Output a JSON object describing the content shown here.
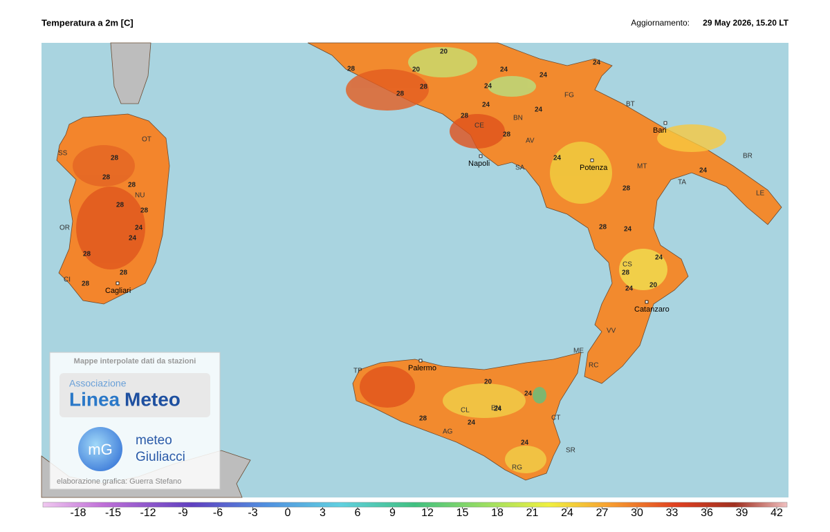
{
  "header": {
    "title": "Temperatura a 2m [C]",
    "update_label": "Aggiornamento:",
    "update_time": "29 May 2026, 15.20 LT"
  },
  "map": {
    "cities": [
      "Napoli",
      "Bari",
      "Potenza",
      "Catanzaro",
      "Palermo",
      "Cagliari"
    ],
    "province_codes": [
      "SS",
      "OT",
      "NU",
      "OR",
      "CI",
      "FG",
      "BT",
      "BR",
      "TA",
      "MT",
      "LE",
      "CE",
      "BN",
      "AV",
      "SA",
      "CS",
      "VV",
      "RC",
      "ME",
      "TP",
      "CL",
      "EN",
      "CT",
      "AG",
      "RG",
      "SR"
    ],
    "isotherm_labels": [
      28,
      28,
      28,
      28,
      28,
      28,
      24,
      28,
      28,
      24,
      28,
      28,
      28,
      20,
      20,
      24,
      24,
      28,
      24,
      24,
      24,
      24,
      24,
      28,
      28,
      28,
      24,
      20,
      24,
      24,
      28,
      20,
      24,
      24,
      28,
      24,
      24,
      24
    ]
  },
  "credits": {
    "caption": "Mappe interpolate dati da stazioni",
    "assoc": "Associazione",
    "linea": "Linea",
    "meteo_word": "Meteo",
    "mg": "mG",
    "giuliacci_1": "meteo",
    "giuliacci_2": "Giuliacci",
    "author": "elaborazione grafica: Guerra Stefano"
  },
  "colorbar": {
    "ticks": [
      -18,
      -15,
      -12,
      -9,
      -6,
      -3,
      0,
      3,
      6,
      9,
      12,
      15,
      18,
      21,
      24,
      27,
      30,
      33,
      36,
      39,
      42
    ]
  }
}
